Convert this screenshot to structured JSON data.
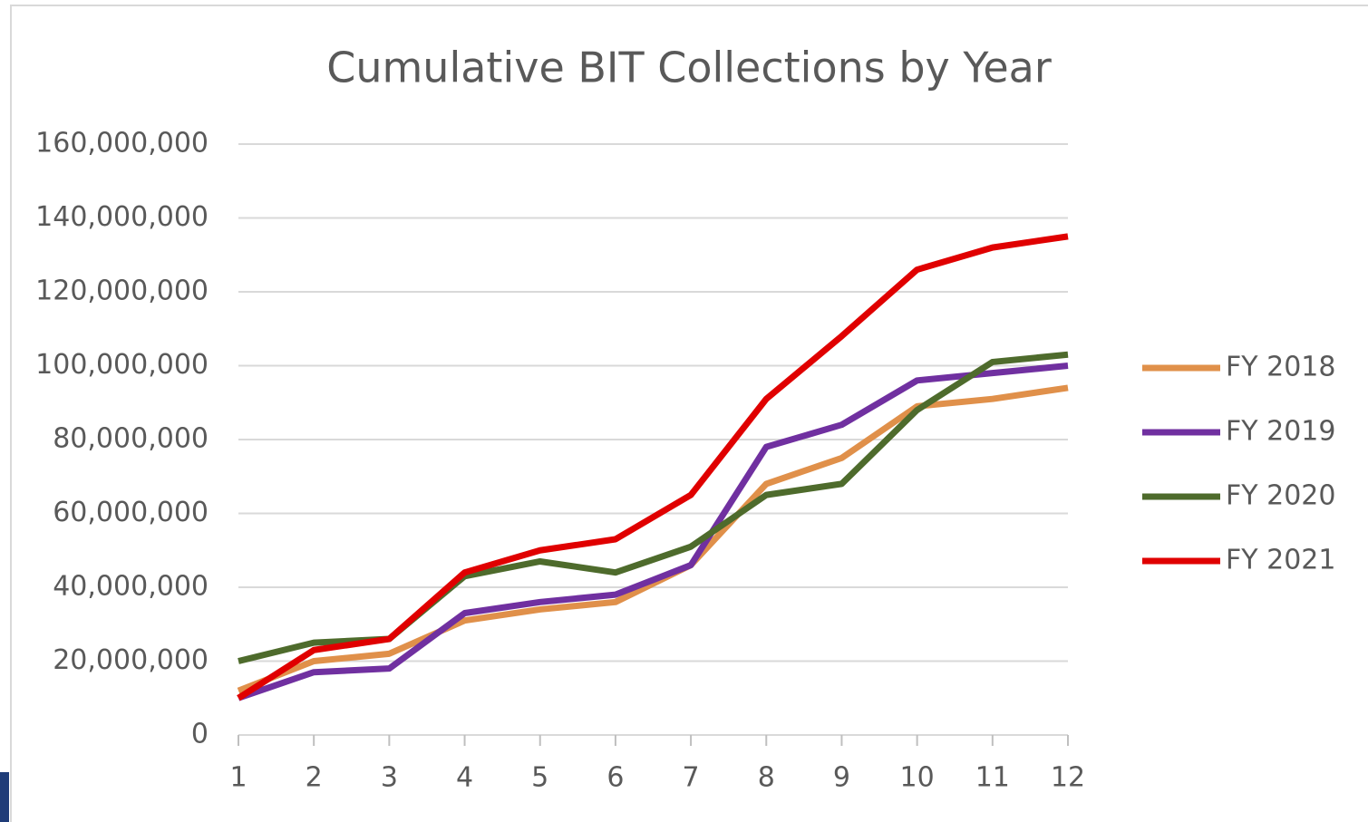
{
  "chart_data": {
    "type": "line",
    "title": "Cumulative BIT Collections by Year",
    "x": [
      1,
      2,
      3,
      4,
      5,
      6,
      7,
      8,
      9,
      10,
      11,
      12
    ],
    "xlim": [
      1,
      12
    ],
    "xticks": [
      1,
      2,
      3,
      4,
      5,
      6,
      7,
      8,
      9,
      10,
      11,
      12
    ],
    "ylim": [
      0,
      160000000
    ],
    "yticks": [
      0,
      {
        "value": 20000000,
        "label": "20,000,000"
      },
      {
        "value": 40000000,
        "label": "40,000,000"
      },
      {
        "value": 60000000,
        "label": "60,000,000"
      },
      {
        "value": 80000000,
        "label": "80,000,000"
      },
      {
        "value": 100000000,
        "label": "100,000,000"
      },
      {
        "value": 120000000,
        "label": "120,000,000"
      },
      {
        "value": 140000000,
        "label": "140,000,000"
      },
      {
        "value": 160000000,
        "label": "160,000,000"
      }
    ],
    "grid": true,
    "legend": "right",
    "series": [
      {
        "name": "FY 2018",
        "color": "#e0904a",
        "values": [
          12000000,
          20000000,
          22000000,
          31000000,
          34000000,
          36000000,
          46000000,
          68000000,
          75000000,
          89000000,
          91000000,
          94000000
        ]
      },
      {
        "name": "FY 2019",
        "color": "#7030a0",
        "values": [
          10000000,
          17000000,
          18000000,
          33000000,
          36000000,
          38000000,
          46000000,
          78000000,
          84000000,
          96000000,
          98000000,
          100000000
        ]
      },
      {
        "name": "FY 2020",
        "color": "#4e6b2c",
        "values": [
          20000000,
          25000000,
          26000000,
          43000000,
          47000000,
          44000000,
          51000000,
          65000000,
          68000000,
          88000000,
          101000000,
          103000000
        ]
      },
      {
        "name": "FY 2021",
        "color": "#e00000",
        "values": [
          10000000,
          23000000,
          26000000,
          44000000,
          50000000,
          53000000,
          65000000,
          91000000,
          108000000,
          126000000,
          132000000,
          135000000
        ]
      }
    ]
  }
}
